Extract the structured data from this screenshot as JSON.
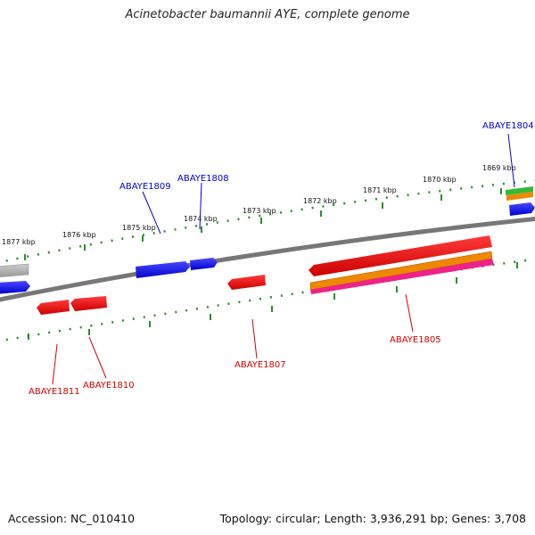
{
  "title": "Acinetobacter baumannii AYE, complete genome",
  "footer": {
    "accession": "Accession: NC_010410",
    "summary": "Topology: circular; Length: 3,936,291 bp; Genes: 3,708"
  },
  "colors": {
    "backbone": "#777777",
    "forward_gene": "#0000ee",
    "reverse_gene": "#ee0000",
    "tick": "#2e8b2e",
    "gray_feature": "#aaaaaa",
    "green_feature": "#33bb33",
    "orange_feature": "#ee8800",
    "magenta_feature": "#ee2288"
  },
  "ticks_outer": [
    "1877 kbp",
    "1876 kbp",
    "1875 kbp",
    "1874 kbp",
    "1873 kbp",
    "1872 kbp",
    "1871 kbp",
    "1870 kbp",
    "1869 kbp"
  ],
  "labels": {
    "forward": [
      "ABAYE1804",
      "ABAYE1808",
      "ABAYE1809"
    ],
    "reverse": [
      "ABAYE1805",
      "ABAYE1807",
      "ABAYE1810",
      "ABAYE1811"
    ]
  }
}
